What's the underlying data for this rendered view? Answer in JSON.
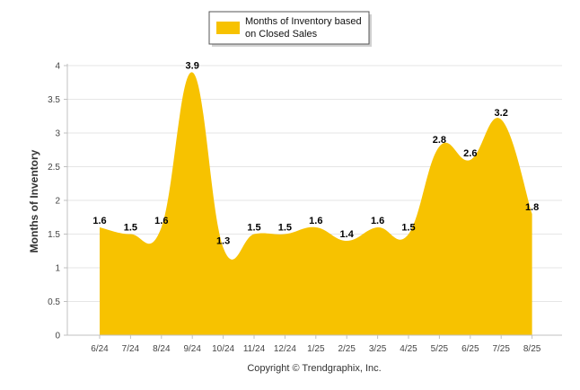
{
  "chart_data": {
    "type": "area",
    "categories": [
      "6/24",
      "7/24",
      "8/24",
      "9/24",
      "10/24",
      "11/24",
      "12/24",
      "1/25",
      "2/25",
      "3/25",
      "4/25",
      "5/25",
      "6/25",
      "7/25",
      "8/25"
    ],
    "series": [
      {
        "name": "Months of Inventory based on Closed Sales",
        "values": [
          1.6,
          1.5,
          1.6,
          3.9,
          1.3,
          1.5,
          1.5,
          1.6,
          1.4,
          1.6,
          1.5,
          2.8,
          2.6,
          3.2,
          1.8
        ],
        "labels": [
          "1.6",
          "1.5",
          "1.6",
          "3.9",
          "1.3",
          "1.5",
          "1.5",
          "1.6",
          "1.4",
          "1.6",
          "1.5",
          "2.8",
          "2.6",
          "3.2",
          "1.8"
        ]
      }
    ],
    "ylabel": "Months of Inventory",
    "xlabel": "",
    "ylim": [
      0,
      4
    ],
    "yticks": [
      0,
      0.5,
      1,
      1.5,
      2,
      2.5,
      3,
      3.5,
      4
    ],
    "ytick_labels": [
      "0",
      "0.5",
      "1",
      "1.5",
      "2",
      "2.5",
      "3",
      "3.5",
      "4"
    ],
    "grid": true,
    "legend_position": "top-center",
    "credit": "Copyright © Trendgraphix, Inc.",
    "colors": {
      "fill": "#F7C200",
      "grid": "#E6E6E6",
      "axis": "#C0C0C0"
    }
  }
}
